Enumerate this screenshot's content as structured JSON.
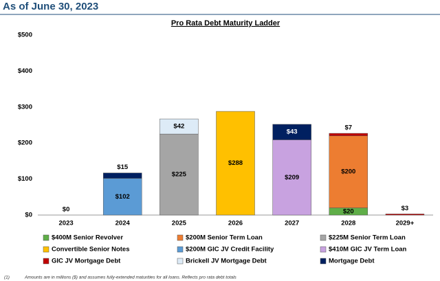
{
  "header": "As of June 30, 2023",
  "footnote": {
    "marker": "(1)",
    "text": "Amounts are in millions ($) and assumes fully-extended maturities for all loans. Reflects pro rata debt totals"
  },
  "chart_data": {
    "type": "stacked_bar",
    "title": "Pro Rata Debt Maturity Ladder",
    "categories": [
      "2023",
      "2024",
      "2025",
      "2026",
      "2027",
      "2028",
      "2029+"
    ],
    "ylim": [
      0,
      500
    ],
    "yticks": [
      {
        "value": 0,
        "label": "$0"
      },
      {
        "value": 100,
        "label": "$100"
      },
      {
        "value": 200,
        "label": "$200"
      },
      {
        "value": 300,
        "label": "$300"
      },
      {
        "value": 400,
        "label": "$400"
      },
      {
        "value": 500,
        "label": "$500"
      }
    ],
    "grid": false,
    "series": [
      {
        "name": "$400M Senior Revolver",
        "color": "#5fae48",
        "values": [
          null,
          null,
          null,
          null,
          null,
          20,
          null
        ],
        "value_labels": [
          null,
          null,
          null,
          null,
          null,
          "$20",
          null
        ]
      },
      {
        "name": "$200M Senior Term Loan",
        "color": "#ed7d31",
        "values": [
          null,
          null,
          null,
          null,
          null,
          200,
          null
        ],
        "value_labels": [
          null,
          null,
          null,
          null,
          null,
          "$200",
          null
        ]
      },
      {
        "name": "$225M Senior Term Loan",
        "color": "#a5a5a5",
        "values": [
          null,
          null,
          225,
          null,
          null,
          null,
          null
        ],
        "value_labels": [
          null,
          null,
          "$225",
          null,
          null,
          null,
          null
        ]
      },
      {
        "name": "Convertible Senior Notes",
        "color": "#ffc000",
        "values": [
          null,
          null,
          null,
          288,
          null,
          null,
          null
        ],
        "value_labels": [
          null,
          null,
          null,
          "$288",
          null,
          null,
          null
        ]
      },
      {
        "name": "$200M GIC JV Credit Facility",
        "color": "#5b9bd5",
        "values": [
          null,
          102,
          null,
          null,
          null,
          null,
          null
        ],
        "value_labels": [
          null,
          "$102",
          null,
          null,
          null,
          null,
          null
        ]
      },
      {
        "name": "$410M GIC JV Term Loan",
        "color": "#c8a2e0",
        "values": [
          null,
          null,
          null,
          null,
          209,
          null,
          null
        ],
        "value_labels": [
          null,
          null,
          null,
          null,
          "$209",
          null,
          null
        ]
      },
      {
        "name": "GIC JV Mortgage Debt",
        "color": "#c00000",
        "values": [
          null,
          null,
          null,
          null,
          null,
          7,
          3
        ],
        "value_labels": [
          null,
          null,
          null,
          null,
          null,
          "$7",
          "$3"
        ]
      },
      {
        "name": "Brickell JV Mortgage Debt",
        "color": "#ddebf7",
        "values": [
          null,
          null,
          42,
          null,
          null,
          null,
          null
        ],
        "value_labels": [
          null,
          null,
          "$42",
          null,
          null,
          null,
          null
        ]
      },
      {
        "name": "Mortgage Debt",
        "color": "#002060",
        "values": [
          0,
          15,
          null,
          null,
          43,
          null,
          null
        ],
        "value_labels": [
          "$0",
          "$15",
          null,
          null,
          "$43",
          null,
          null
        ]
      }
    ]
  }
}
